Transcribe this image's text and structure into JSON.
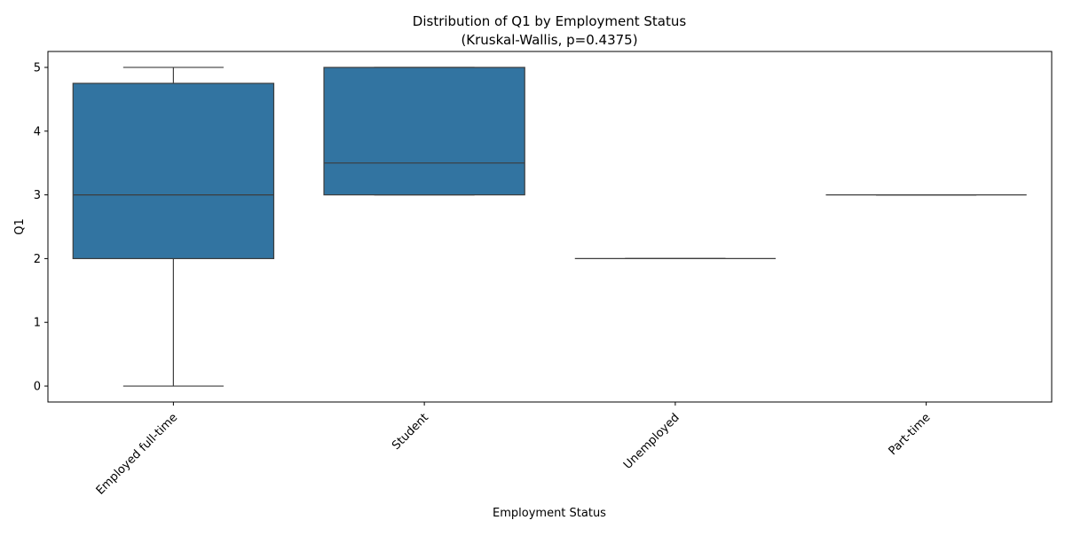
{
  "chart_data": {
    "type": "box",
    "title": "Distribution of Q1 by Employment Status",
    "subtitle": "(Kruskal-Wallis, p=0.4375)",
    "xlabel": "Employment Status",
    "ylabel": "Q1",
    "ylim": [
      -0.25,
      5.25
    ],
    "yticks": [
      0,
      1,
      2,
      3,
      4,
      5
    ],
    "ytick_labels": [
      "0",
      "1",
      "2",
      "3",
      "4",
      "5"
    ],
    "grid": false,
    "box_color": "#3274a1",
    "line_color": "#3d3d3d",
    "categories": [
      "Employed full-time",
      "Student",
      "Unemployed",
      "Part-time"
    ],
    "boxes": [
      {
        "category": "Employed full-time",
        "whisker_low": 0,
        "q1": 2,
        "median": 3,
        "q3": 4.75,
        "whisker_high": 5
      },
      {
        "category": "Student",
        "whisker_low": 3,
        "q1": 3,
        "median": 3.5,
        "q3": 5,
        "whisker_high": 5
      },
      {
        "category": "Unemployed",
        "whisker_low": 2,
        "q1": 2,
        "median": 2,
        "q3": 2,
        "whisker_high": 2
      },
      {
        "category": "Part-time",
        "whisker_low": 3,
        "q1": 3,
        "median": 3,
        "q3": 3,
        "whisker_high": 3
      }
    ]
  }
}
